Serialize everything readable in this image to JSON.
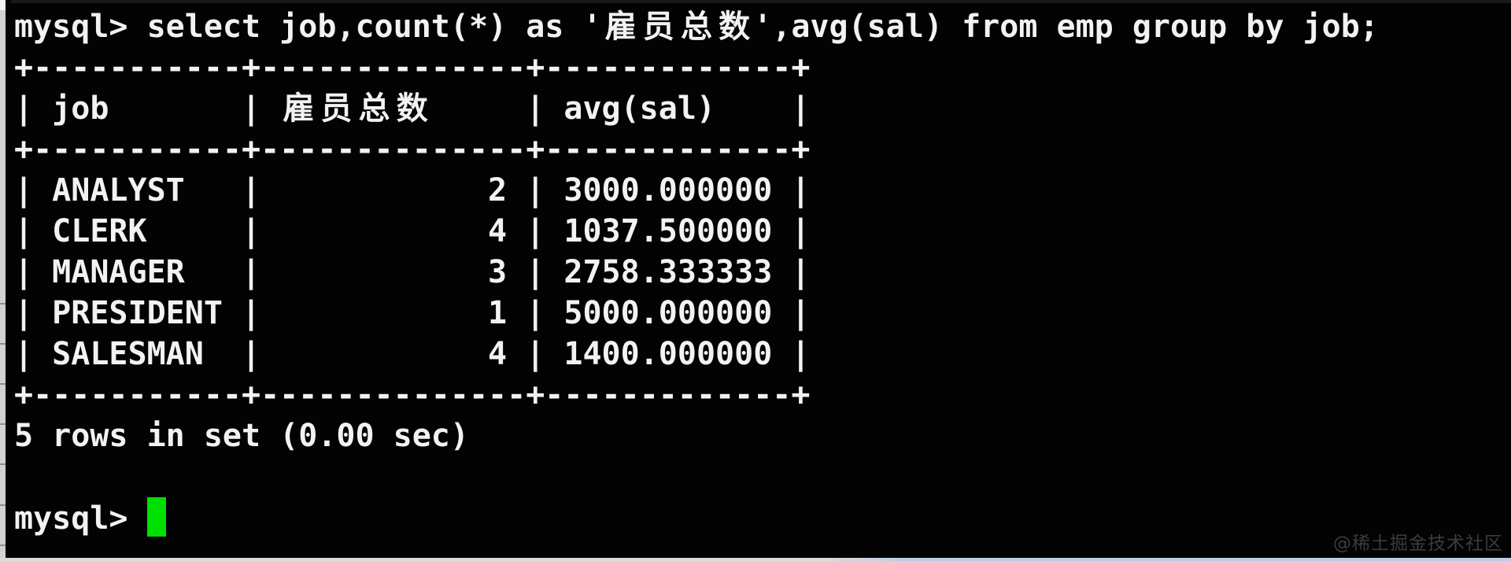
{
  "colors": {
    "background": "#030303",
    "text": "#f2f2f2",
    "cursor_green": "#00e000",
    "watermark_gray": "#3c3c3c"
  },
  "terminal": {
    "prompt": "mysql>",
    "query": "select job,count(*) as '雇员总数',avg(sal) from emp group by job;",
    "status_line": "5 rows in set (0.00 sec)"
  },
  "result_table": {
    "columns": [
      {
        "header": "job",
        "width": 11,
        "align": "left"
      },
      {
        "header": "雇员总数",
        "width": 14,
        "align": "right"
      },
      {
        "header": "avg(sal)",
        "width": 13,
        "align": "left"
      }
    ],
    "rows": [
      [
        "ANALYST",
        "2",
        "3000.000000"
      ],
      [
        "CLERK",
        "4",
        "1037.500000"
      ],
      [
        "MANAGER",
        "3",
        "2758.333333"
      ],
      [
        "PRESIDENT",
        "1",
        "5000.000000"
      ],
      [
        "SALESMAN",
        "4",
        "1400.000000"
      ]
    ]
  },
  "watermark": "@稀土掘金技术社区"
}
